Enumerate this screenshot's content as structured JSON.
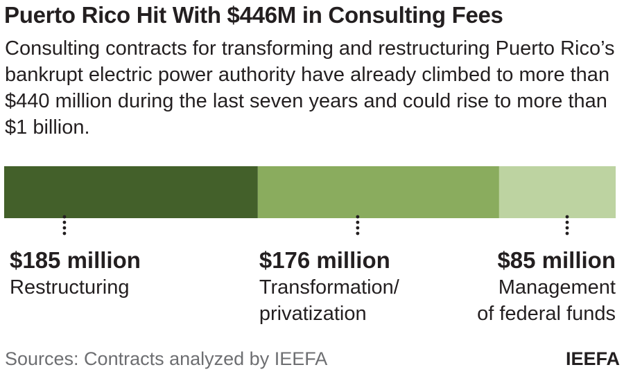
{
  "title": "Puerto Rico Hit With $446M in Consulting Fees",
  "subtitle": "Consulting contracts for transforming and restructuring Puerto Rico’s bankrupt electric power authority have already climbed to more than $440 million during the last seven years and could rise to more than $1 billion.",
  "source": "Sources: Contracts analyzed by IEEFA",
  "brand": "IEEFA",
  "colors": {
    "restructuring": "#43602a",
    "transformation": "#8aac5e",
    "federal_funds": "#bdd3a1",
    "dots": "#231f20"
  },
  "chart_data": {
    "type": "bar",
    "orientation": "horizontal-stacked",
    "unit": "million USD",
    "title": "Puerto Rico Hit With $446M in Consulting Fees",
    "total": 446,
    "segments": [
      {
        "value": 185,
        "value_label": "$185 million",
        "category": [
          "Restructuring"
        ],
        "color": "#43602a",
        "align": "left"
      },
      {
        "value": 176,
        "value_label": "$176 million",
        "category": [
          "Transformation/",
          "privatization"
        ],
        "color": "#8aac5e",
        "align": "left"
      },
      {
        "value": 85,
        "value_label": "$85 million",
        "category": [
          "Management",
          "of federal funds"
        ],
        "color": "#bdd3a1",
        "align": "right"
      }
    ]
  }
}
